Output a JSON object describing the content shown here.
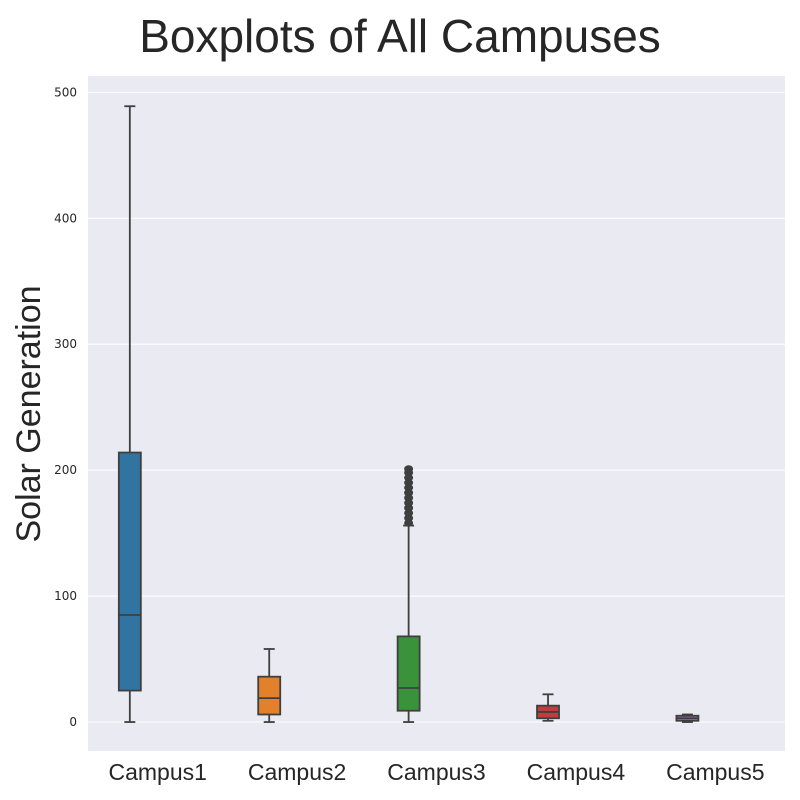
{
  "chart_data": {
    "type": "boxplot",
    "title": "Boxplots of All Campuses",
    "xlabel": "",
    "ylabel": "Solar Generation",
    "ylim": [
      -23,
      513
    ],
    "yticks": [
      0,
      100,
      200,
      300,
      400,
      500
    ],
    "categories": [
      "Campus1",
      "Campus2",
      "Campus3",
      "Campus4",
      "Campus5"
    ],
    "series": [
      {
        "category": "Campus1",
        "color": "#3274a1",
        "whisker_low": 0,
        "q1": 25,
        "median": 85,
        "q3": 214,
        "whisker_high": 489,
        "outliers": []
      },
      {
        "category": "Campus2",
        "color": "#e1812c",
        "whisker_low": 0,
        "q1": 6,
        "median": 19,
        "q3": 36,
        "whisker_high": 58,
        "outliers": []
      },
      {
        "category": "Campus3",
        "color": "#3a923a",
        "whisker_low": 0,
        "q1": 9,
        "median": 27,
        "q3": 68,
        "whisker_high": 156,
        "outliers": [
          158,
          162,
          166,
          170,
          174,
          178,
          182,
          186,
          190,
          194,
          198,
          201
        ]
      },
      {
        "category": "Campus4",
        "color": "#c03d3e",
        "whisker_low": 1,
        "q1": 3,
        "median": 8,
        "q3": 13,
        "whisker_high": 22,
        "outliers": []
      },
      {
        "category": "Campus5",
        "color": "#9372b2",
        "whisker_low": 0,
        "q1": 1,
        "median": 3,
        "q3": 5,
        "whisker_high": 6,
        "outliers": []
      }
    ],
    "grid": true,
    "background": "#eaeaf2",
    "grid_color": "#ffffff",
    "line_color": "#3f3f3f"
  }
}
